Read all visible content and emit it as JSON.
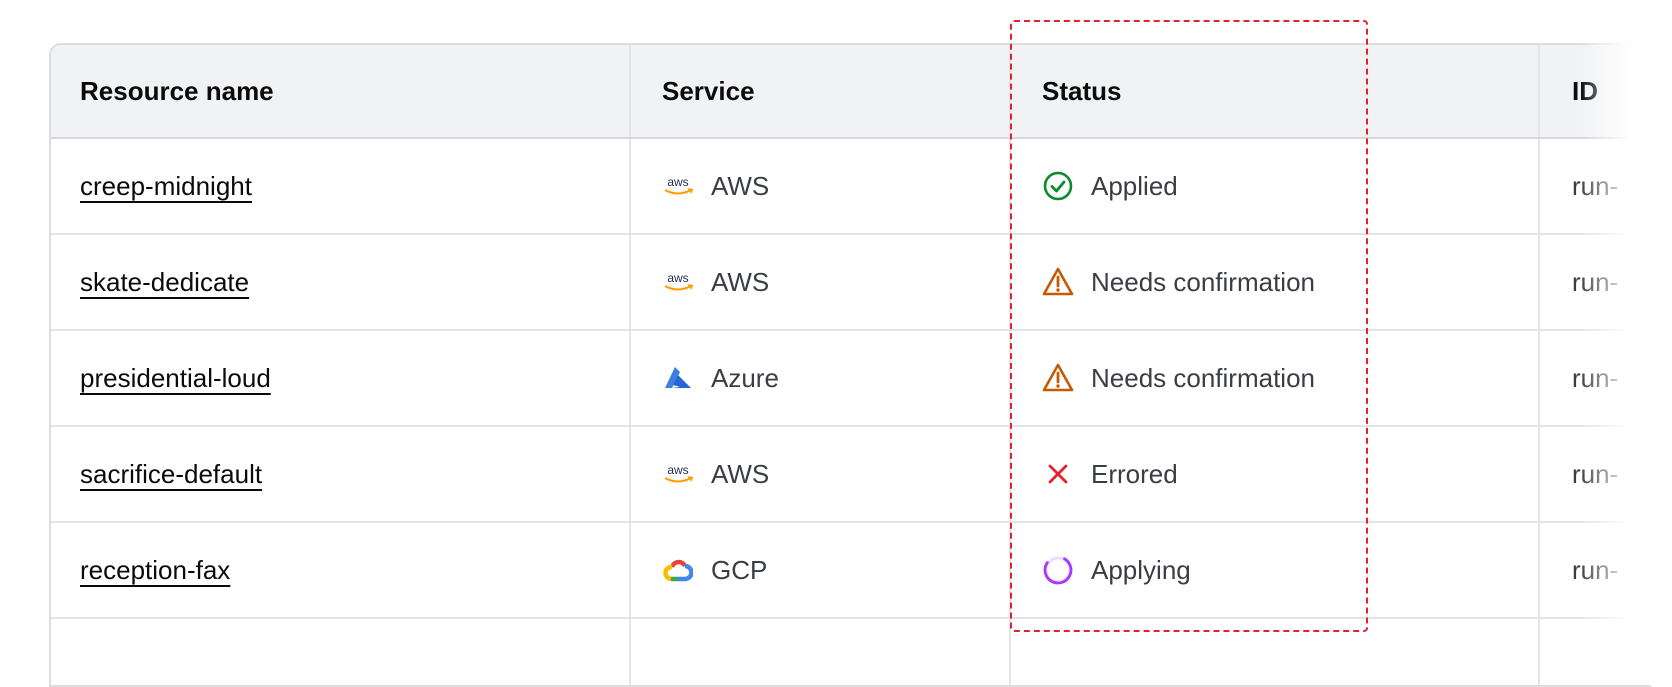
{
  "table": {
    "columns": [
      "Resource name",
      "Service",
      "Status",
      "ID"
    ],
    "rows": [
      {
        "name": "creep-midnight",
        "service": "AWS",
        "service_icon": "aws-logo-icon",
        "status": "Applied",
        "status_icon": "check-circle-icon",
        "id": "run-"
      },
      {
        "name": "skate-dedicate",
        "service": "AWS",
        "service_icon": "aws-logo-icon",
        "status": "Needs confirmation",
        "status_icon": "warning-triangle-icon",
        "id": "run-"
      },
      {
        "name": "presidential-loud",
        "service": "Azure",
        "service_icon": "azure-logo-icon",
        "status": "Needs confirmation",
        "status_icon": "warning-triangle-icon",
        "id": "run-"
      },
      {
        "name": "sacrifice-default",
        "service": "AWS",
        "service_icon": "aws-logo-icon",
        "status": "Errored",
        "status_icon": "x-icon",
        "id": "run-"
      },
      {
        "name": "reception-fax",
        "service": "GCP",
        "service_icon": "gcp-logo-icon",
        "status": "Applying",
        "status_icon": "spinner-icon",
        "id": "run-"
      }
    ]
  },
  "colors": {
    "applied": "#0b8a2e",
    "warning": "#c55a00",
    "errored": "#e0232e",
    "applying": "#a737ff",
    "highlight": "#e0232e"
  }
}
